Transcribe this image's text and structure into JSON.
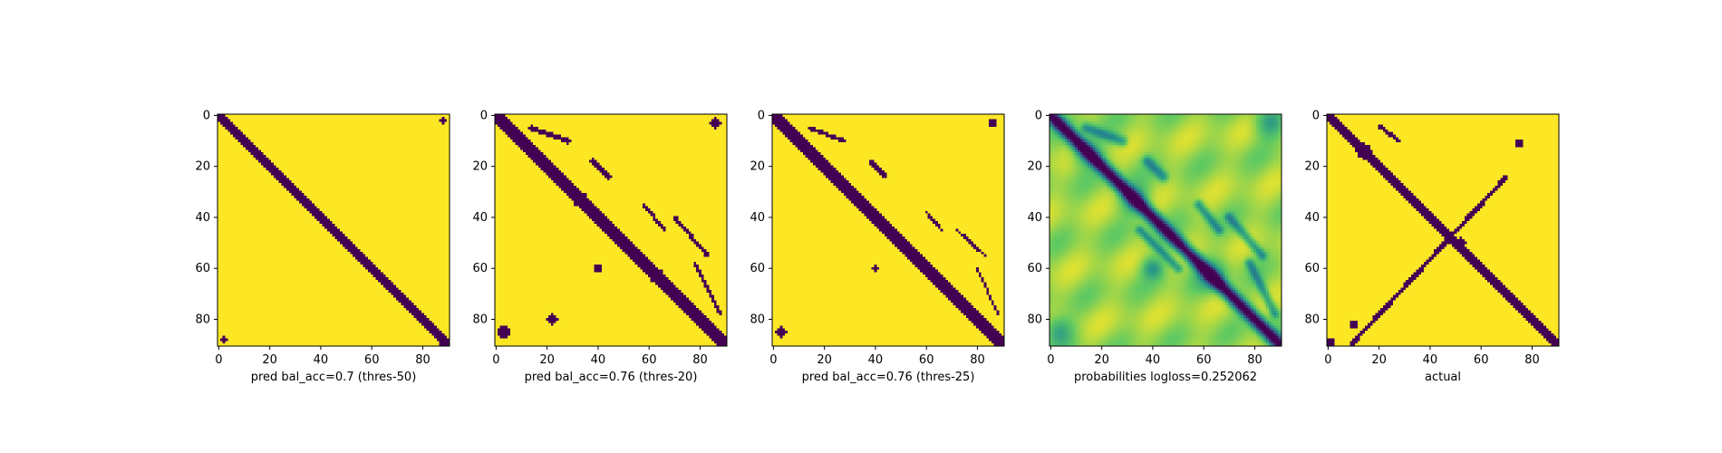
{
  "figure": {
    "panel_count": 5,
    "colormap": "viridis",
    "colors": {
      "low": "#440154",
      "mid_dark": "#3b528b",
      "mid": "#21918c",
      "mid_light": "#5ec962",
      "high": "#fde725"
    }
  },
  "chart_data": [
    {
      "type": "heatmap",
      "xlabel": "pred bal_acc=0.7 (thres-50)",
      "grid_size": 91,
      "xticks": [
        0,
        20,
        40,
        60,
        80
      ],
      "yticks": [
        0,
        20,
        40,
        60,
        80
      ],
      "xlim": [
        0,
        90
      ],
      "ylim": [
        90,
        0
      ],
      "style": "binary",
      "diagonal_halfwidth": 1.6,
      "segments": [],
      "blobs": [
        [
          2,
          88,
          1
        ],
        [
          88,
          2,
          1
        ],
        [
          89,
          88,
          1.5
        ]
      ]
    },
    {
      "type": "heatmap",
      "xlabel": "pred bal_acc=0.76 (thres-20)",
      "grid_size": 91,
      "xticks": [
        0,
        20,
        40,
        60,
        80
      ],
      "yticks": [
        0,
        20,
        40,
        60,
        80
      ],
      "xlim": [
        0,
        90
      ],
      "ylim": [
        90,
        0
      ],
      "style": "binary",
      "diagonal_halfwidth": 2.4,
      "segments": [
        [
          [
            5,
            14
          ],
          [
            10,
            28
          ],
          1
        ],
        [
          [
            18,
            38
          ],
          [
            24,
            44
          ],
          1
        ],
        [
          [
            35,
            58
          ],
          [
            45,
            66
          ],
          0.7
        ],
        [
          [
            40,
            70
          ],
          [
            55,
            83
          ],
          0.8
        ],
        [
          [
            58,
            78
          ],
          [
            78,
            88
          ],
          0.6
        ]
      ],
      "blobs": [
        [
          14,
          14,
          2.5
        ],
        [
          33,
          33,
          3
        ],
        [
          63,
          63,
          3
        ],
        [
          85,
          3,
          2.5
        ],
        [
          3,
          86,
          2
        ],
        [
          60,
          40,
          1.5
        ],
        [
          80,
          22,
          2
        ]
      ]
    },
    {
      "type": "heatmap",
      "xlabel": "pred bal_acc=0.76 (thres-25)",
      "grid_size": 91,
      "xticks": [
        0,
        20,
        40,
        60,
        80
      ],
      "yticks": [
        0,
        20,
        40,
        60,
        80
      ],
      "xlim": [
        0,
        90
      ],
      "ylim": [
        90,
        0
      ],
      "style": "binary",
      "diagonal_halfwidth": 2.2,
      "segments": [
        [
          [
            5,
            14
          ],
          [
            10,
            28
          ],
          0.8
        ],
        [
          [
            18,
            38
          ],
          [
            24,
            44
          ],
          0.8
        ],
        [
          [
            38,
            60
          ],
          [
            45,
            66
          ],
          0.6
        ],
        [
          [
            45,
            72
          ],
          [
            55,
            83
          ],
          0.6
        ],
        [
          [
            60,
            80
          ],
          [
            78,
            88
          ],
          0.5
        ]
      ],
      "blobs": [
        [
          14,
          14,
          2.2
        ],
        [
          33,
          33,
          2.5
        ],
        [
          63,
          63,
          2.5
        ],
        [
          85,
          3,
          2
        ],
        [
          3,
          86,
          1.5
        ],
        [
          60,
          40,
          1.2
        ]
      ]
    },
    {
      "type": "heatmap",
      "xlabel": "probabilities logloss=0.252062",
      "grid_size": 91,
      "xticks": [
        0,
        20,
        40,
        60,
        80
      ],
      "yticks": [
        0,
        20,
        40,
        60,
        80
      ],
      "xlim": [
        0,
        90
      ],
      "ylim": [
        90,
        0
      ],
      "style": "continuous",
      "diagonal_halfwidth": 1.8,
      "segments": [
        [
          [
            5,
            14
          ],
          [
            10,
            28
          ],
          1.4
        ],
        [
          [
            18,
            38
          ],
          [
            24,
            44
          ],
          1.4
        ],
        [
          [
            35,
            58
          ],
          [
            45,
            66
          ],
          1.2
        ],
        [
          [
            40,
            70
          ],
          [
            55,
            83
          ],
          1.2
        ],
        [
          [
            58,
            78
          ],
          [
            78,
            88
          ],
          1.2
        ],
        [
          [
            45,
            35
          ],
          [
            60,
            50
          ],
          1.2
        ]
      ],
      "blobs": [
        [
          14,
          14,
          4
        ],
        [
          33,
          33,
          4
        ],
        [
          63,
          63,
          4
        ],
        [
          85,
          3,
          4
        ],
        [
          3,
          86,
          4
        ],
        [
          60,
          40,
          3
        ]
      ]
    },
    {
      "type": "heatmap",
      "xlabel": "actual",
      "grid_size": 91,
      "xticks": [
        0,
        20,
        40,
        60,
        80
      ],
      "yticks": [
        0,
        20,
        40,
        60,
        80
      ],
      "xlim": [
        0,
        90
      ],
      "ylim": [
        90,
        0
      ],
      "style": "binary",
      "diagonal_halfwidth": 1.8,
      "segments": [
        [
          [
            4,
            20
          ],
          [
            10,
            28
          ],
          0.8
        ],
        [
          [
            24,
            70
          ],
          [
            90,
            9
          ],
          0.9
        ]
      ],
      "blobs": [
        [
          14,
          14,
          3
        ],
        [
          23,
          23,
          2
        ],
        [
          11,
          75,
          1.5
        ],
        [
          50,
          52,
          2
        ],
        [
          82,
          10,
          1.5
        ],
        [
          89,
          1,
          1.5
        ]
      ]
    }
  ]
}
